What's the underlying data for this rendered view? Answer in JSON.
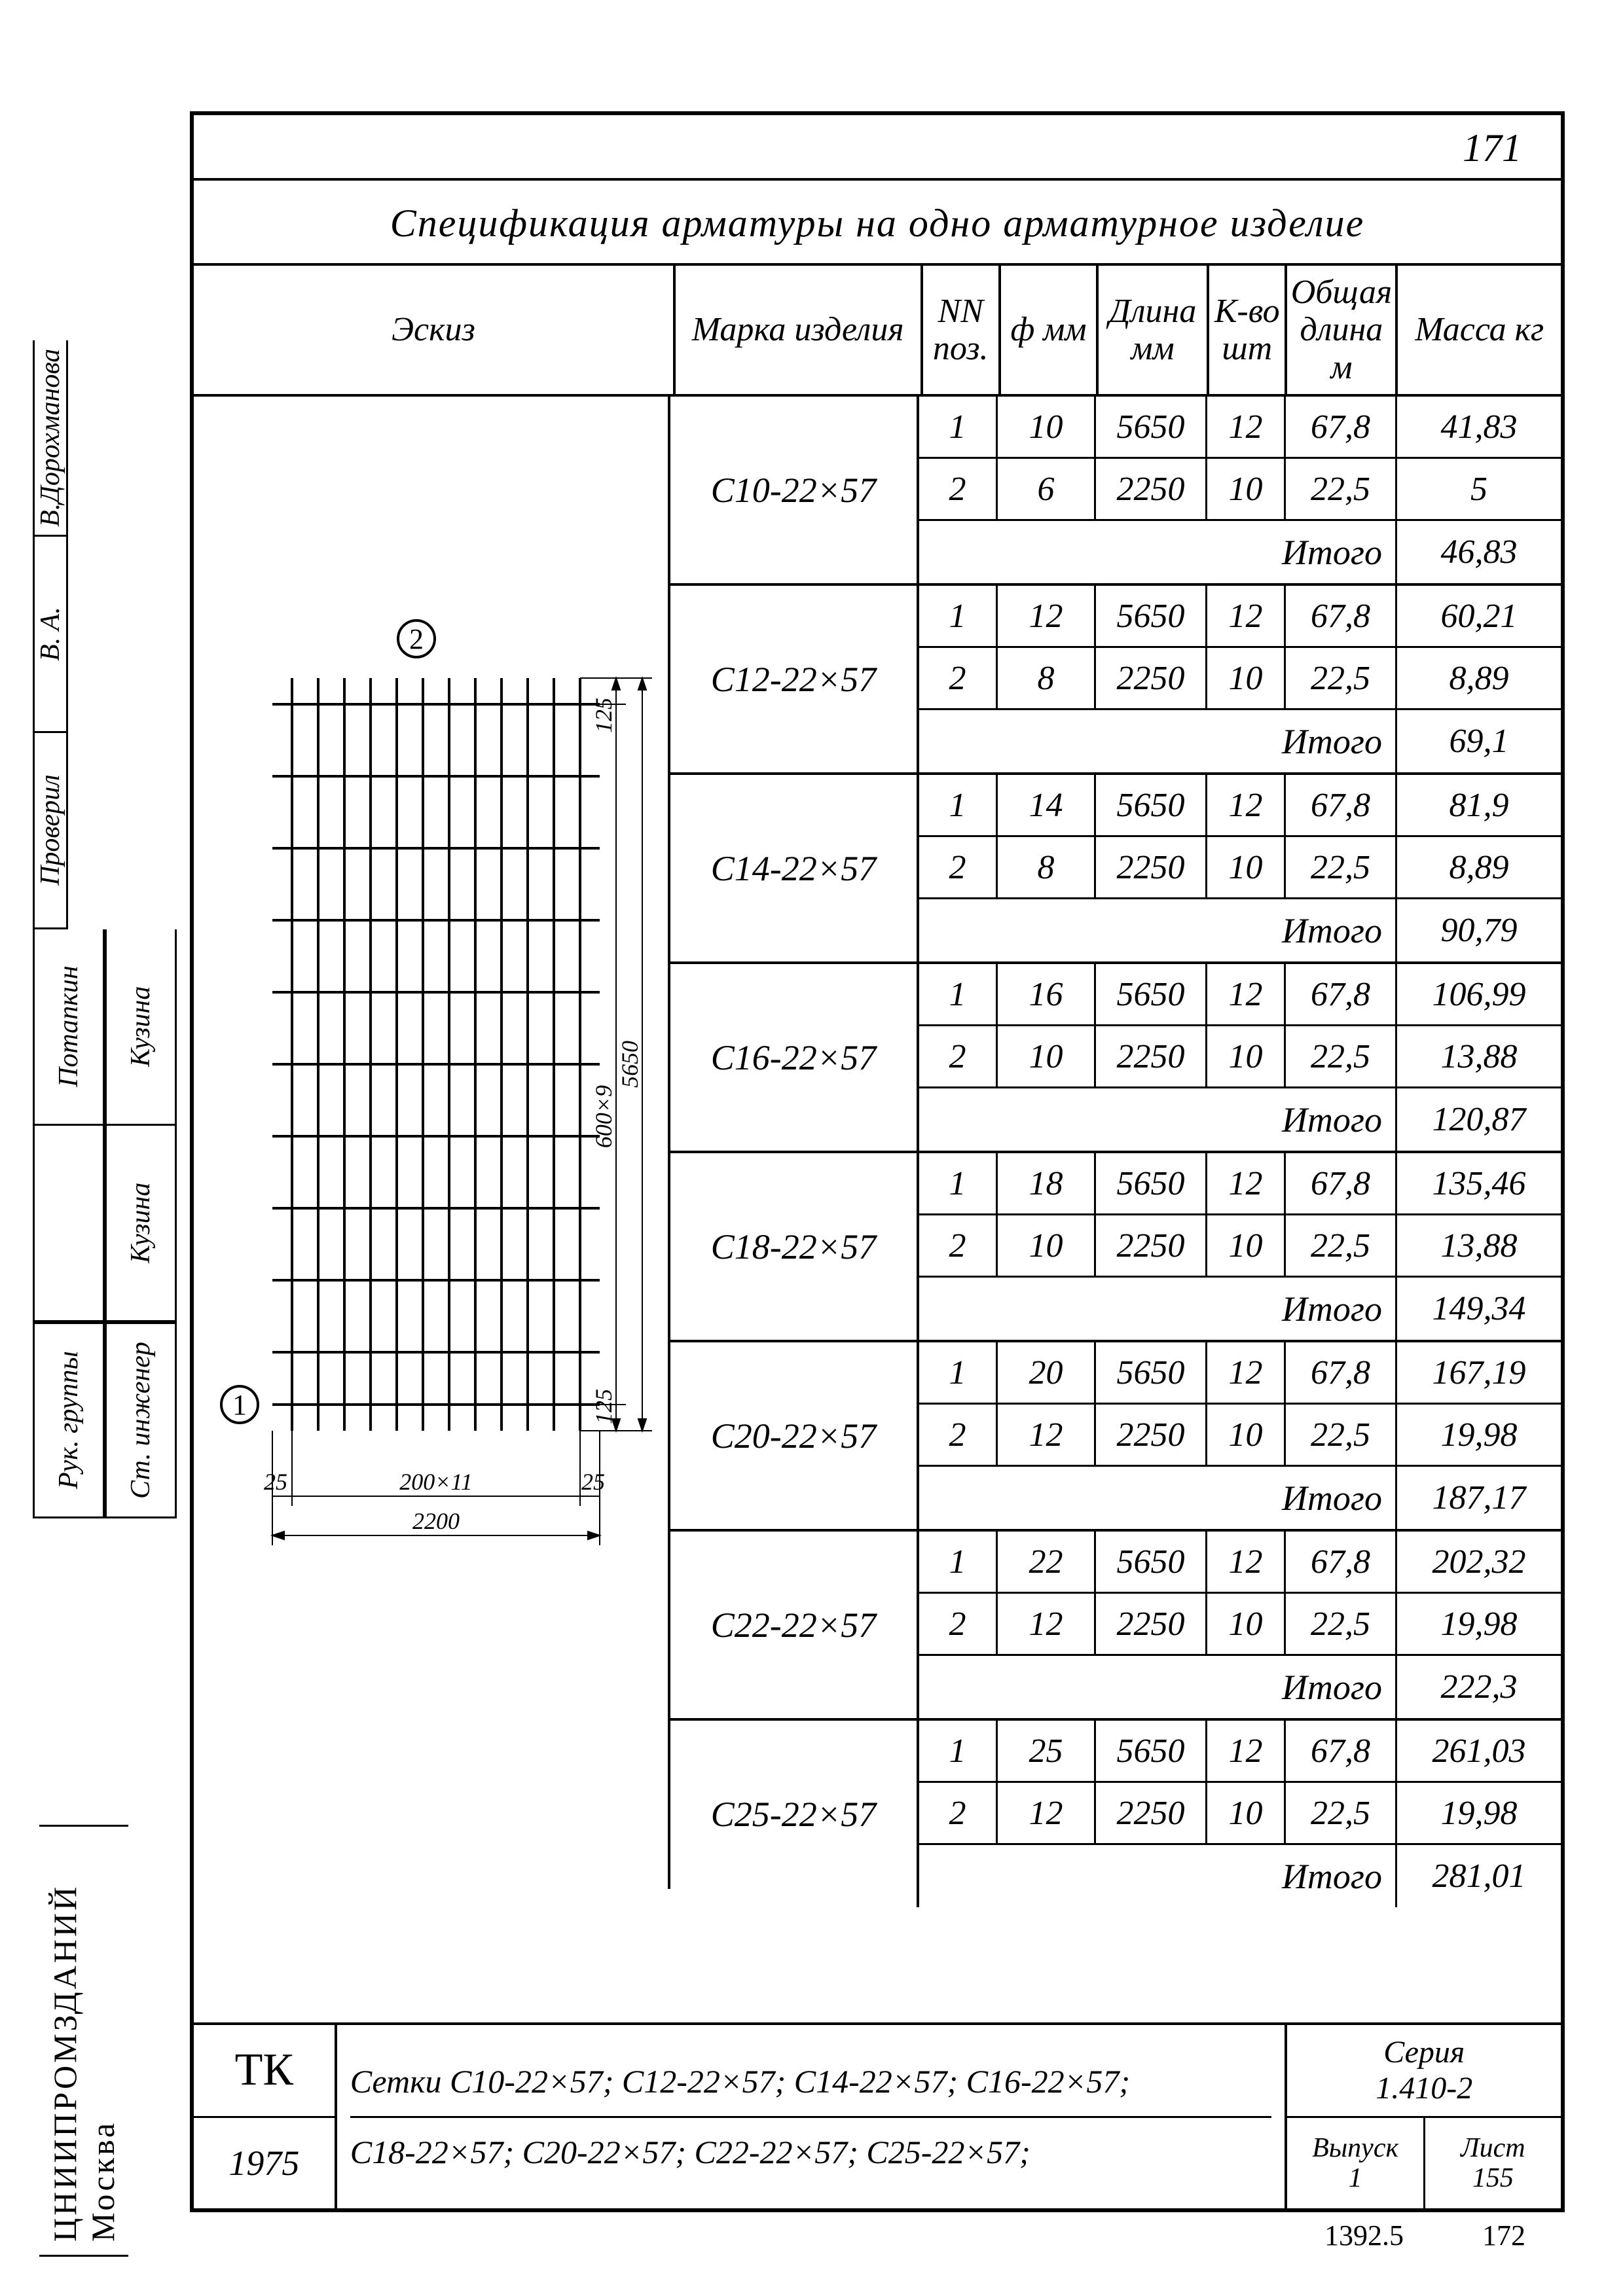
{
  "page_number": "171",
  "title": "Спецификация арматуры на одно арматурное изделие",
  "headers": {
    "sketch": "Эскиз",
    "marka": "Марка\nизделия",
    "nn": "NN\nпоз.",
    "phi": "ф\nмм",
    "length": "Длина\nмм",
    "qty": "К-во\nшт",
    "total_len": "Общая\nдлина\nм",
    "mass": "Масса\nкг"
  },
  "itogo_label": "Итого",
  "groups": [
    {
      "marka": "С10-22×57",
      "rows": [
        {
          "nn": "1",
          "phi": "10",
          "len": "5650",
          "qty": "12",
          "tot": "67,8",
          "mass": "41,83"
        },
        {
          "nn": "2",
          "phi": "6",
          "len": "2250",
          "qty": "10",
          "tot": "22,5",
          "mass": "5"
        }
      ],
      "itogo": "46,83"
    },
    {
      "marka": "С12-22×57",
      "rows": [
        {
          "nn": "1",
          "phi": "12",
          "len": "5650",
          "qty": "12",
          "tot": "67,8",
          "mass": "60,21"
        },
        {
          "nn": "2",
          "phi": "8",
          "len": "2250",
          "qty": "10",
          "tot": "22,5",
          "mass": "8,89"
        }
      ],
      "itogo": "69,1"
    },
    {
      "marka": "С14-22×57",
      "rows": [
        {
          "nn": "1",
          "phi": "14",
          "len": "5650",
          "qty": "12",
          "tot": "67,8",
          "mass": "81,9"
        },
        {
          "nn": "2",
          "phi": "8",
          "len": "2250",
          "qty": "10",
          "tot": "22,5",
          "mass": "8,89"
        }
      ],
      "itogo": "90,79"
    },
    {
      "marka": "С16-22×57",
      "rows": [
        {
          "nn": "1",
          "phi": "16",
          "len": "5650",
          "qty": "12",
          "tot": "67,8",
          "mass": "106,99"
        },
        {
          "nn": "2",
          "phi": "10",
          "len": "2250",
          "qty": "10",
          "tot": "22,5",
          "mass": "13,88"
        }
      ],
      "itogo": "120,87"
    },
    {
      "marka": "С18-22×57",
      "rows": [
        {
          "nn": "1",
          "phi": "18",
          "len": "5650",
          "qty": "12",
          "tot": "67,8",
          "mass": "135,46"
        },
        {
          "nn": "2",
          "phi": "10",
          "len": "2250",
          "qty": "10",
          "tot": "22,5",
          "mass": "13,88"
        }
      ],
      "itogo": "149,34"
    },
    {
      "marka": "С20-22×57",
      "rows": [
        {
          "nn": "1",
          "phi": "20",
          "len": "5650",
          "qty": "12",
          "tot": "67,8",
          "mass": "167,19"
        },
        {
          "nn": "2",
          "phi": "12",
          "len": "2250",
          "qty": "10",
          "tot": "22,5",
          "mass": "19,98"
        }
      ],
      "itogo": "187,17"
    },
    {
      "marka": "С22-22×57",
      "rows": [
        {
          "nn": "1",
          "phi": "22",
          "len": "5650",
          "qty": "12",
          "tot": "67,8",
          "mass": "202,32"
        },
        {
          "nn": "2",
          "phi": "12",
          "len": "2250",
          "qty": "10",
          "tot": "22,5",
          "mass": "19,98"
        }
      ],
      "itogo": "222,3"
    },
    {
      "marka": "С25-22×57",
      "rows": [
        {
          "nn": "1",
          "phi": "25",
          "len": "5650",
          "qty": "12",
          "tot": "67,8",
          "mass": "261,03"
        },
        {
          "nn": "2",
          "phi": "12",
          "len": "2250",
          "qty": "10",
          "tot": "22,5",
          "mass": "19,98"
        }
      ],
      "itogo": "281,01"
    }
  ],
  "sketch": {
    "type": "diagram",
    "marker_1": "1",
    "marker_2": "2",
    "dim_v_total": "5650",
    "dim_v_spacing": "600×9",
    "dim_v_end1": "125",
    "dim_v_end2": "125",
    "dim_h_total": "2200",
    "dim_h_spacing": "200×11",
    "dim_h_end1": "25",
    "dim_h_end2": "25",
    "grid_color": "#000000",
    "line_width": 3
  },
  "bottom": {
    "tk": "ТК",
    "year": "1975",
    "setki_line1": "Сетки С10-22×57; С12-22×57; С14-22×57; С16-22×57;",
    "setki_line2": "С18-22×57; С20-22×57; С22-22×57; С25-22×57;",
    "seria_label": "Серия",
    "seria_value": "1.410-2",
    "vypusk_label": "Выпуск",
    "vypusk_value": "1",
    "list_label": "Лист",
    "list_value": "155"
  },
  "footer": {
    "left_num": "1392.5",
    "right_num": "172"
  },
  "side_stamp": {
    "org": "ЦНИИПРОМЗДАНИЙ\nМосква",
    "roles": [
      "Рук. группы",
      "Ст. инженер",
      "Потапкин",
      "Кузина",
      "Проверил",
      "В.Дорохманова"
    ],
    "kuzina": "Кузина"
  }
}
